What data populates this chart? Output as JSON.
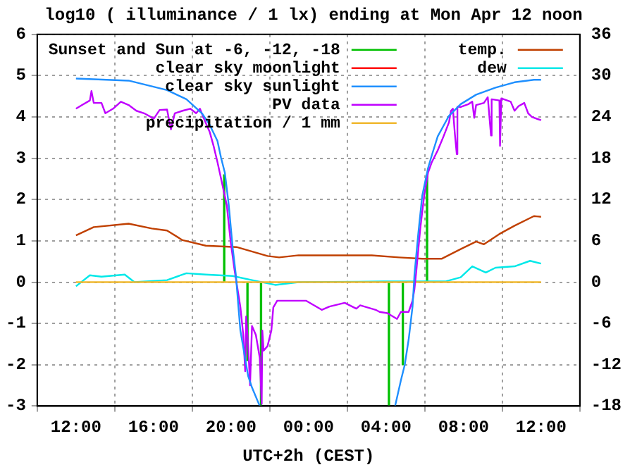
{
  "chart_data": {
    "type": "line",
    "title": "log10 ( illuminance / 1 lx) ending at Mon Apr 12 noon",
    "xlabel": "UTC+2h (CEST)",
    "xlim": [
      "--04-11T12:00",
      "--04-12T12:00"
    ],
    "xticks": [
      {
        "value": "--04-11T12:00",
        "label": "12:00"
      },
      {
        "value": "--04-11T16:00",
        "label": "16:00"
      },
      {
        "value": "--04-11T20:00",
        "label": "20:00"
      },
      {
        "value": "--04-12T00:00",
        "label": "00:00"
      },
      {
        "value": "--04-12T04:00",
        "label": "04:00"
      },
      {
        "value": "--04-12T08:00",
        "label": "08:00"
      },
      {
        "value": "--04-12T12:00",
        "label": "12:00"
      }
    ],
    "ylim": [
      -3,
      6
    ],
    "yticks": [
      -3,
      -2,
      -1,
      0,
      1,
      2,
      3,
      4,
      5,
      6
    ],
    "y2lim": [
      -18,
      36
    ],
    "y2ticks": [
      -18,
      -12,
      -6,
      0,
      6,
      12,
      18,
      24,
      30,
      36
    ],
    "grid": true,
    "legend": "top",
    "line_style": "solid",
    "marker": "none",
    "series": [
      {
        "name": "Sunset and Sun at -6, -12, -18",
        "type": "bar",
        "color": "#00c000",
        "x": [
          "--04-11T19:39",
          "--04-11T20:11",
          "--04-11T20:51",
          "--04-11T21:33",
          "--04-12T04:09",
          "--04-12T04:52",
          "--04-12T05:30",
          "--04-12T06:07"
        ],
        "values": [
          2.6,
          null,
          -1.9,
          -3,
          -3,
          -2,
          null,
          2.6
        ]
      },
      {
        "name": "clear sky moonlight",
        "color": "#ff0000"
      },
      {
        "name": "clear sky sunlight",
        "color": "#1e8fff",
        "x": [
          "--04-11T12:00",
          "--04-11T14:43",
          "--04-11T16:42",
          "--04-11T17:42",
          "--04-11T18:30",
          "--04-11T18:54",
          "--04-11T19:18",
          "--04-11T19:29",
          "--04-11T19:41",
          "--04-11T19:53",
          "--04-11T20:05",
          "--04-11T20:15",
          "--04-11T20:23",
          "--04-11T20:29",
          "--04-11T20:41",
          "--04-11T20:53",
          "--04-11T21:05",
          "--04-11T21:29",
          "--04-12T01:00",
          "--04-12T04:28",
          "--04-12T04:46",
          "--04-12T04:58",
          "--04-12T05:10",
          "--04-12T05:22",
          "--04-12T05:28",
          "--04-12T05:40",
          "--04-12T05:52",
          "--04-12T06:10",
          "--04-12T06:22",
          "--04-12T06:40",
          "--04-12T07:15",
          "--04-12T07:51",
          "--04-12T08:39",
          "--04-12T09:39",
          "--04-12T10:38",
          "--04-12T11:38",
          "--04-12T12:00"
        ],
        "values": [
          4.93,
          4.88,
          4.65,
          4.43,
          4.09,
          3.81,
          3.42,
          3.02,
          2.65,
          1.87,
          0.85,
          0.18,
          -0.6,
          -1.17,
          -1.72,
          -2.27,
          -2.55,
          -3,
          null,
          -3,
          -2.38,
          -2,
          -1.39,
          -0.6,
          0.18,
          1.19,
          2.09,
          2.76,
          3.08,
          3.53,
          4.03,
          4.31,
          4.54,
          4.71,
          4.84,
          4.9,
          4.9
        ]
      },
      {
        "name": "PV data",
        "color": "#c000ff",
        "x": [
          "--04-11T12:00",
          "--04-11T12:19",
          "--04-11T12:43",
          "--04-11T12:48",
          "--04-11T12:55",
          "--04-11T13:19",
          "--04-11T13:31",
          "--04-11T13:55",
          "--04-11T14:19",
          "--04-11T14:43",
          "--04-11T15:07",
          "--04-11T15:31",
          "--04-11T16:01",
          "--04-11T16:19",
          "--04-11T16:42",
          "--04-11T16:54",
          "--04-11T17:06",
          "--04-11T17:30",
          "--04-11T17:54",
          "--04-11T18:12",
          "--04-11T18:24",
          "--04-11T18:36",
          "--04-11T18:54",
          "--04-11T19:06",
          "--04-11T19:18",
          "--04-11T19:35",
          "--04-11T19:47",
          "--04-11T19:59",
          "--04-11T20:11",
          "--04-11T20:29",
          "--04-11T20:38",
          "--04-11T20:44",
          "--04-11T20:47",
          "--04-11T20:53",
          "--04-11T20:59",
          "--04-11T21:05",
          "--04-11T21:17",
          "--04-11T21:29",
          "--04-11T21:35",
          "--04-11T21:37",
          "--04-11T21:41",
          "--04-11T21:53",
          "--04-11T22:05",
          "--04-11T22:11",
          "--04-11T22:23",
          "--04-11T23:05",
          "--04-11T23:53",
          "--04-12T00:41",
          "--04-12T01:05",
          "--04-12T01:52",
          "--04-12T02:28",
          "--04-12T02:40",
          "--04-12T03:28",
          "--04-12T03:40",
          "--04-12T04:04",
          "--04-12T04:34",
          "--04-12T04:46",
          "--04-12T05:10",
          "--04-12T05:22",
          "--04-12T05:28",
          "--04-12T05:34",
          "--04-12T05:46",
          "--04-12T05:58",
          "--04-12T06:10",
          "--04-12T06:22",
          "--04-12T06:40",
          "--04-12T06:58",
          "--04-12T07:15",
          "--04-12T07:21",
          "--04-12T07:27",
          "--04-12T07:33",
          "--04-12T07:39",
          "--04-12T07:41",
          "--04-12T07:51",
          "--04-12T08:15",
          "--04-12T08:27",
          "--04-12T08:33",
          "--04-12T08:39",
          "--04-12T09:03",
          "--04-12T09:15",
          "--04-12T09:25",
          "--04-12T09:27",
          "--04-12T09:51",
          "--04-12T09:53",
          "--04-12T09:57",
          "--04-12T10:26",
          "--04-12T10:38",
          "--04-12T10:50",
          "--04-12T11:08",
          "--04-12T11:20",
          "--04-12T11:32",
          "--04-12T12:00"
        ],
        "values": [
          4.2,
          4.29,
          4.4,
          4.63,
          4.34,
          4.34,
          4.09,
          4.2,
          4.37,
          4.29,
          4.15,
          4.09,
          3.96,
          4.17,
          4.18,
          3.7,
          4.09,
          4.15,
          4.2,
          4.09,
          4.2,
          3.96,
          3.64,
          3.3,
          2.91,
          2.3,
          1.86,
          0.97,
          0.29,
          -0.6,
          -1.28,
          -2.16,
          -0.83,
          -1.5,
          -2.5,
          -1.06,
          -1.28,
          -1.83,
          -2.95,
          -1.17,
          -1.66,
          -1.55,
          -1.17,
          -0.61,
          -0.45,
          -0.45,
          -0.45,
          -0.67,
          -0.59,
          -0.5,
          -0.64,
          -0.56,
          -0.67,
          -0.72,
          -0.75,
          -0.89,
          -0.72,
          -0.72,
          -0.45,
          -0.17,
          0.29,
          1.3,
          2.09,
          2.65,
          2.91,
          3.19,
          3.53,
          3.87,
          4.15,
          4.2,
          3.6,
          3.1,
          4.25,
          4.24,
          4.31,
          4.37,
          3.98,
          4.29,
          4.34,
          4.48,
          3.55,
          4.43,
          4.4,
          3.3,
          4.45,
          4.37,
          4.15,
          4.26,
          4.34,
          4.09,
          4,
          3.92
        ]
      },
      {
        "name": "precipitation / 1 mm",
        "color": "#f0b830",
        "x": [
          "--04-11T12:00",
          "--04-12T12:00"
        ],
        "values": [
          0,
          0
        ]
      },
      {
        "name": "temp.",
        "color": "#c04000",
        "axis": "y2",
        "x": [
          "--04-11T12:00",
          "--04-11T12:55",
          "--04-11T14:43",
          "--04-11T15:55",
          "--04-11T16:42",
          "--04-11T17:30",
          "--04-11T18:42",
          "--04-11T20:17",
          "--04-11T21:53",
          "--04-11T22:29",
          "--04-11T23:29",
          "--04-12T03:16",
          "--04-12T04:40",
          "--04-12T05:52",
          "--04-12T06:52",
          "--04-12T07:51",
          "--04-12T08:39",
          "--04-12T09:03",
          "--04-12T09:51",
          "--04-12T10:38",
          "--04-12T11:38",
          "--04-12T12:00"
        ],
        "values": [
          6.8,
          8,
          8.5,
          7.8,
          7.5,
          6.1,
          5.3,
          5.1,
          3.8,
          3.6,
          3.9,
          3.9,
          3.6,
          3.4,
          3.4,
          4.8,
          5.9,
          5.5,
          7,
          8.2,
          9.6,
          9.5
        ]
      },
      {
        "name": "dew",
        "color": "#00e8e8",
        "axis": "y2",
        "x": [
          "--04-11T12:00",
          "--04-11T12:43",
          "--04-11T13:19",
          "--04-11T14:31",
          "--04-11T15:01",
          "--04-11T16:42",
          "--04-11T17:42",
          "--04-11T18:42",
          "--04-11T20:05",
          "--04-11T21:05",
          "--04-11T22:17",
          "--04-11T23:29",
          "--04-12T03:52",
          "--04-12T07:03",
          "--04-12T07:51",
          "--04-12T08:27",
          "--04-12T09:09",
          "--04-12T09:39",
          "--04-12T10:38",
          "--04-12T11:26",
          "--04-12T12:00"
        ],
        "values": [
          -0.6,
          1,
          0.8,
          1.1,
          0,
          0.3,
          1.3,
          1.1,
          0.9,
          0.3,
          -0.4,
          0,
          0.1,
          0.1,
          0.7,
          2.3,
          1.4,
          2.1,
          2.3,
          3.1,
          2.7
        ]
      }
    ]
  }
}
